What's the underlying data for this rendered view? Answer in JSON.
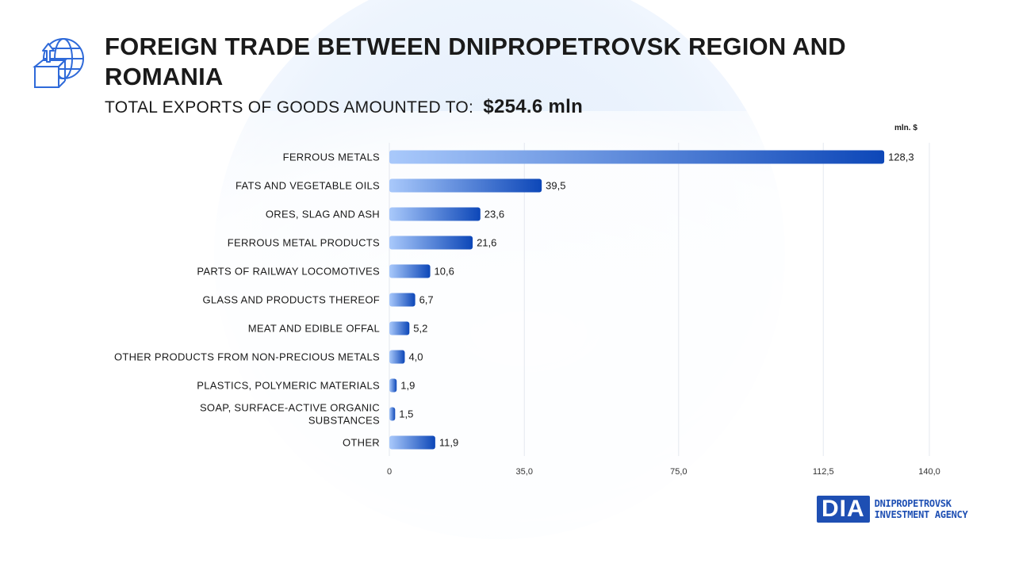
{
  "header": {
    "title": "FOREIGN TRADE BETWEEN DNIPROPETROVSK REGION AND ROMANIA",
    "subtitle_label": "TOTAL EXPORTS OF GOODS AMOUNTED TO:",
    "subtitle_value": "$254.6 mln",
    "icon": "globe-box-export-icon"
  },
  "chart_data": {
    "type": "bar",
    "orientation": "horizontal",
    "unit": "mln. $",
    "categories": [
      "FERROUS METALS",
      "FATS AND VEGETABLE OILS",
      "ORES, SLAG AND ASH",
      "FERROUS METAL PRODUCTS",
      "PARTS OF RAILWAY LOCOMOTIVES",
      "GLASS AND PRODUCTS THEREOF",
      "MEAT AND EDIBLE OFFAL",
      "OTHER PRODUCTS FROM NON-PRECIOUS METALS",
      "PLASTICS, POLYMERIC MATERIALS",
      "SOAP, SURFACE-ACTIVE ORGANIC SUBSTANCES",
      "OTHER"
    ],
    "values": [
      128.3,
      39.5,
      23.6,
      21.6,
      10.6,
      6.7,
      5.2,
      4.0,
      1.9,
      1.5,
      11.9
    ],
    "value_labels": [
      "128,3",
      "39,5",
      "23,6",
      "21,6",
      "10,6",
      "6,7",
      "5,2",
      "4,0",
      "1,9",
      "1,5",
      "11,9"
    ],
    "xlim": [
      0,
      140
    ],
    "x_ticks": [
      0,
      35,
      75,
      112.5,
      140
    ],
    "x_tick_labels": [
      "0",
      "35,0",
      "75,0",
      "112,5",
      "140,0"
    ],
    "grid": true,
    "colors": {
      "bar_start": "#a9c9fb",
      "bar_end": "#0d47b8"
    }
  },
  "brand": {
    "mark": "DIA",
    "line1": "DNIPROPETROVSK",
    "line2": "INVESTMENT AGENCY",
    "color": "#1e4fb3"
  }
}
